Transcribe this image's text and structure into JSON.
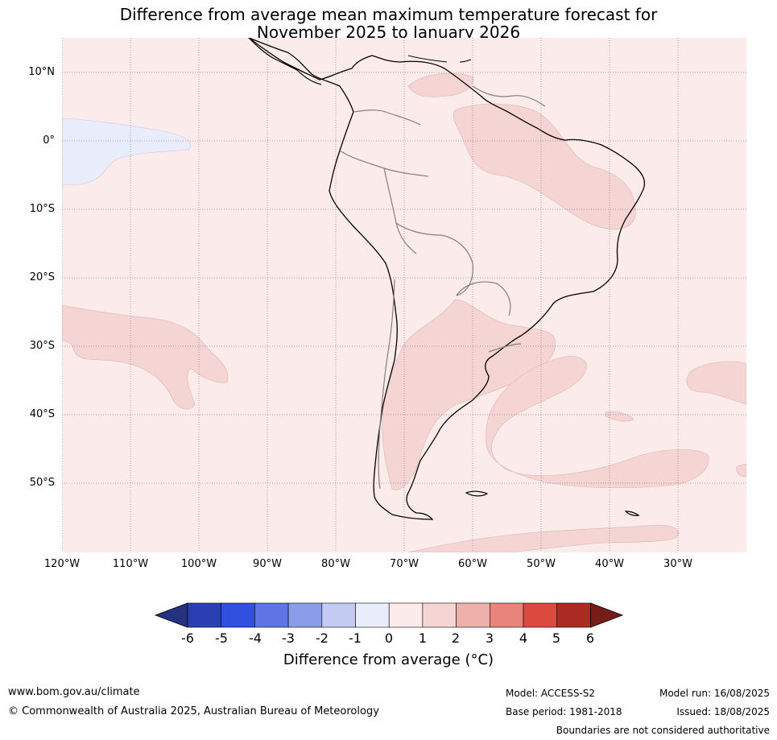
{
  "title": {
    "line1": "Difference from average mean maximum temperature forecast for",
    "line2": "November 2025 to January 2026"
  },
  "map": {
    "lat_labels": [
      "10°N",
      "0°",
      "10°S",
      "20°S",
      "30°S",
      "40°S",
      "50°S"
    ],
    "lon_labels": [
      "120°W",
      "110°W",
      "100°W",
      "90°W",
      "80°W",
      "70°W",
      "60°W",
      "50°W",
      "40°W",
      "30°W"
    ],
    "background_color": "#fbebea",
    "land_border_color": "#000000",
    "country_border_color": "#808080"
  },
  "colorbar": {
    "ticks": [
      "-6",
      "-5",
      "-4",
      "-3",
      "-2",
      "-1",
      "0",
      "1",
      "2",
      "3",
      "4",
      "5",
      "6"
    ],
    "colors": [
      "#25327f",
      "#2a3fb1",
      "#3150e0",
      "#5f75e6",
      "#8b9ceb",
      "#c3cbf3",
      "#e9ecfa",
      "#fbebea",
      "#f5d5d3",
      "#edb0ab",
      "#e8847c",
      "#da4a3e",
      "#ab2b22",
      "#761d18"
    ],
    "label": "Difference from average (°C)"
  },
  "footer": {
    "website": "www.bom.gov.au/climate",
    "copyright": "© Commonwealth of Australia 2025, Australian Bureau of Meteorology",
    "model": "Model: ACCESS-S2",
    "base_period": "Base period: 1981-2018",
    "model_run": "Model run: 16/08/2025",
    "issued": "Issued: 18/08/2025",
    "disclaimer": "Boundaries are not considered authoritative"
  }
}
